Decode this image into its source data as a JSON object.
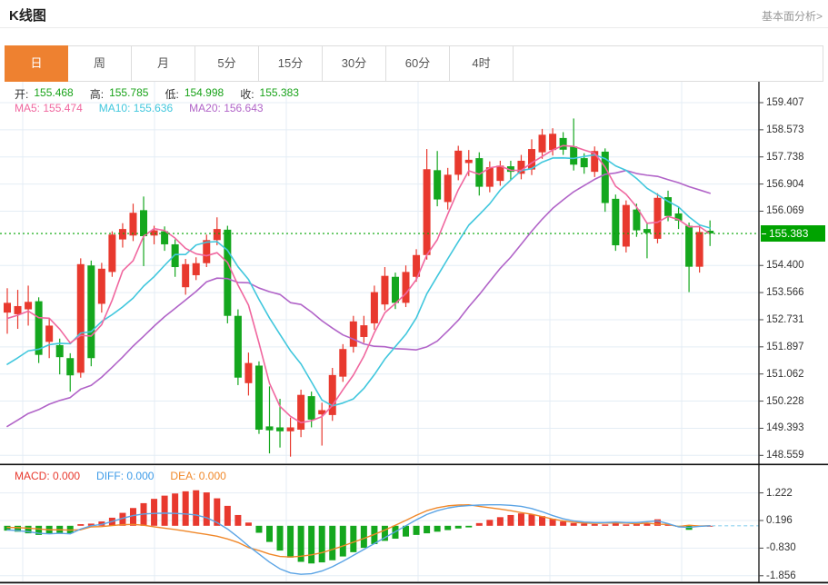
{
  "header": {
    "title": "K线图",
    "link": "基本面分析>"
  },
  "tabs": {
    "items": [
      "日",
      "周",
      "月",
      "5分",
      "15分",
      "30分",
      "60分",
      "4时"
    ],
    "selected": "日",
    "selected_color": "#ee8130"
  },
  "ohlc_row": {
    "open_label": "开:",
    "open": "155.468",
    "high_label": "高:",
    "high": "155.785",
    "low_label": "低:",
    "low": "154.998",
    "close_label": "收:",
    "close": "155.383"
  },
  "ma_row": {
    "ma5_label": "MA5:",
    "ma5": "155.474",
    "ma10_label": "MA10:",
    "ma10": "155.636",
    "ma20_label": "MA20:",
    "ma20": "156.643"
  },
  "price_tag": "155.383",
  "colors": {
    "up_candle": "#e8392e",
    "down_candle": "#14a71e",
    "ma5": "#f0679f",
    "ma10": "#41c7dd",
    "ma20": "#b164c8",
    "diff_line": "#5ba4e5",
    "dea_line": "#f0882a",
    "grid": "#e4edf5",
    "axis_line": "#222222",
    "ohlc_value_green": "#1aa31a",
    "macd_label_red": "#e8392e",
    "diff_label_blue": "#3d9be8",
    "dea_label_orange": "#f0882a",
    "current_price_green": "#00a300",
    "zero_dash_cyan": "#8fd2ef",
    "tab_orange": "#ee8130",
    "link_gray": "#999999"
  },
  "chart_data": {
    "type": "candlestick+macd",
    "title": "K线图 (daily K-line with MA5/MA10/MA20 and MACD)",
    "legend_position": "top-left",
    "grid": true,
    "main": {
      "y_ticks": [
        "159.407",
        "158.573",
        "157.738",
        "156.904",
        "156.069",
        "154.400",
        "153.566",
        "152.731",
        "151.897",
        "151.062",
        "150.228",
        "149.393",
        "148.559"
      ],
      "ylim": [
        148.14,
        159.82
      ],
      "last_price": 155.383,
      "ma_header": {
        "ma5": 155.474,
        "ma10": 155.636,
        "ma20": 156.643
      },
      "ma_left_edge": {
        "ma5": 152.65,
        "ma10": 151.15,
        "ma20": 149.25
      },
      "candles": {
        "open": [
          152.95,
          152.9,
          153.05,
          153.3,
          152.05,
          151.95,
          151.55,
          151.1,
          154.4,
          153.22,
          154.2,
          155.2,
          155.32,
          156.1,
          155.32,
          155.45,
          155.05,
          153.73,
          154.1,
          154.47,
          155.18,
          155.5,
          152.85,
          150.78,
          151.32,
          149.45,
          149.42,
          149.3,
          149.35,
          150.38,
          149.82,
          149.8,
          150.98,
          151.9,
          152.2,
          152.62,
          153.2,
          154.05,
          153.25,
          154.05,
          154.72,
          157.33,
          156.35,
          157.19,
          157.55,
          157.7,
          156.82,
          157.0,
          157.45,
          157.22,
          157.35,
          157.88,
          157.95,
          158.32,
          158.06,
          157.7,
          157.28,
          157.9,
          156.45,
          154.98,
          156.12,
          155.52,
          155.22,
          156.5,
          156.0,
          155.62,
          154.36,
          155.468
        ],
        "close": [
          153.25,
          153.15,
          153.28,
          151.65,
          152.55,
          151.58,
          151.02,
          154.44,
          151.55,
          154.3,
          155.35,
          155.52,
          156.02,
          155.3,
          155.48,
          155.05,
          154.35,
          154.44,
          154.47,
          155.18,
          155.52,
          152.85,
          150.95,
          151.4,
          149.35,
          149.33,
          149.3,
          149.42,
          150.42,
          149.66,
          149.95,
          151.03,
          151.83,
          152.68,
          152.56,
          153.58,
          154.08,
          153.25,
          154.2,
          154.72,
          157.36,
          156.43,
          157.19,
          157.93,
          157.65,
          156.82,
          157.42,
          157.47,
          157.28,
          157.62,
          157.98,
          158.42,
          158.45,
          157.96,
          157.5,
          157.42,
          157.92,
          156.32,
          155.02,
          156.26,
          155.48,
          155.4,
          156.48,
          155.92,
          155.78,
          154.36,
          155.43,
          155.383
        ],
        "high": [
          153.7,
          153.65,
          153.78,
          153.42,
          152.78,
          152.15,
          151.7,
          154.62,
          154.55,
          154.48,
          155.45,
          155.7,
          156.3,
          156.52,
          155.62,
          155.6,
          155.2,
          154.6,
          154.65,
          155.35,
          155.88,
          155.62,
          153.05,
          151.72,
          151.45,
          150.68,
          150.3,
          149.72,
          150.58,
          150.52,
          150.18,
          151.25,
          151.98,
          152.85,
          152.85,
          153.78,
          154.35,
          154.18,
          154.4,
          154.9,
          157.98,
          157.92,
          157.4,
          158.08,
          157.95,
          157.88,
          157.6,
          157.62,
          157.62,
          157.8,
          158.28,
          158.6,
          158.62,
          158.5,
          158.92,
          157.85,
          158.06,
          158.0,
          156.58,
          156.4,
          156.3,
          155.72,
          156.62,
          156.7,
          156.18,
          155.72,
          155.66,
          155.785
        ],
        "low": [
          152.3,
          152.45,
          152.55,
          151.4,
          151.55,
          151.05,
          150.52,
          150.95,
          151.3,
          152.95,
          154.05,
          154.95,
          155.15,
          154.38,
          155.05,
          154.85,
          154.05,
          153.5,
          153.95,
          154.35,
          155.02,
          152.62,
          150.72,
          150.4,
          149.22,
          148.62,
          148.8,
          148.52,
          149.12,
          149.42,
          148.86,
          149.62,
          150.82,
          151.72,
          152.02,
          152.42,
          153.02,
          153.06,
          153.12,
          153.9,
          154.58,
          156.22,
          156.12,
          157.02,
          157.15,
          156.55,
          156.65,
          156.85,
          157.02,
          157.05,
          157.18,
          157.68,
          157.78,
          157.8,
          157.32,
          157.22,
          157.12,
          156.05,
          154.85,
          154.8,
          155.28,
          154.62,
          155.08,
          155.76,
          155.52,
          153.58,
          154.18,
          154.998
        ]
      }
    },
    "macd": {
      "labels": {
        "macd_label": "MACD:",
        "macd": "0.000",
        "diff_label": "DIFF:",
        "diff": "0.000",
        "dea_label": "DEA:",
        "dea": "0.000"
      },
      "y_ticks": [
        "1.222",
        "0.196",
        "-0.830",
        "-1.856"
      ],
      "ylim": [
        -2.2,
        1.6
      ],
      "hist": [
        -0.18,
        -0.22,
        -0.28,
        -0.34,
        -0.3,
        -0.26,
        -0.28,
        0.06,
        0.08,
        0.16,
        0.3,
        0.48,
        0.66,
        0.84,
        1.0,
        1.12,
        1.2,
        1.28,
        1.32,
        1.24,
        1.02,
        0.74,
        0.4,
        0.12,
        -0.26,
        -0.6,
        -0.92,
        -1.18,
        -1.34,
        -1.4,
        -1.36,
        -1.28,
        -1.14,
        -0.98,
        -0.82,
        -0.68,
        -0.56,
        -0.48,
        -0.4,
        -0.34,
        -0.28,
        -0.22,
        -0.16,
        -0.1,
        -0.06,
        0.1,
        0.22,
        0.32,
        0.4,
        0.46,
        0.42,
        0.36,
        0.26,
        0.16,
        0.1,
        0.08,
        0.06,
        0.05,
        0.08,
        0.05,
        0.1,
        0.1,
        0.24,
        0.06,
        -0.02,
        -0.15,
        -0.02,
        0.0
      ],
      "diff_line": [
        -0.15,
        -0.18,
        -0.22,
        -0.28,
        -0.3,
        -0.28,
        -0.3,
        -0.12,
        0.0,
        0.05,
        0.16,
        0.28,
        0.38,
        0.44,
        0.46,
        0.47,
        0.46,
        0.44,
        0.4,
        0.3,
        0.12,
        -0.12,
        -0.42,
        -0.75,
        -1.05,
        -1.35,
        -1.6,
        -1.75,
        -1.8,
        -1.78,
        -1.68,
        -1.52,
        -1.32,
        -1.1,
        -0.88,
        -0.66,
        -0.44,
        -0.22,
        0.0,
        0.22,
        0.42,
        0.56,
        0.66,
        0.72,
        0.75,
        0.77,
        0.78,
        0.78,
        0.76,
        0.72,
        0.64,
        0.52,
        0.38,
        0.26,
        0.18,
        0.14,
        0.12,
        0.12,
        0.14,
        0.12,
        0.12,
        0.15,
        0.18,
        0.08,
        -0.04,
        -0.06,
        -0.02,
        0.0
      ],
      "dea_line": [
        -0.06,
        -0.07,
        -0.09,
        -0.12,
        -0.15,
        -0.15,
        -0.16,
        -0.15,
        -0.04,
        -0.03,
        0.01,
        0.04,
        0.05,
        0.02,
        -0.04,
        -0.09,
        -0.14,
        -0.2,
        -0.26,
        -0.32,
        -0.39,
        -0.49,
        -0.62,
        -0.81,
        -0.92,
        -1.05,
        -1.14,
        -1.16,
        -1.13,
        -1.08,
        -1.0,
        -0.88,
        -0.75,
        -0.61,
        -0.47,
        -0.32,
        -0.16,
        0.02,
        0.2,
        0.39,
        0.56,
        0.67,
        0.74,
        0.77,
        0.78,
        0.72,
        0.67,
        0.62,
        0.56,
        0.49,
        0.43,
        0.34,
        0.25,
        0.18,
        0.13,
        0.1,
        0.09,
        0.1,
        0.1,
        0.1,
        0.07,
        0.1,
        0.06,
        0.05,
        -0.03,
        0.02,
        -0.01,
        0.0
      ]
    }
  }
}
